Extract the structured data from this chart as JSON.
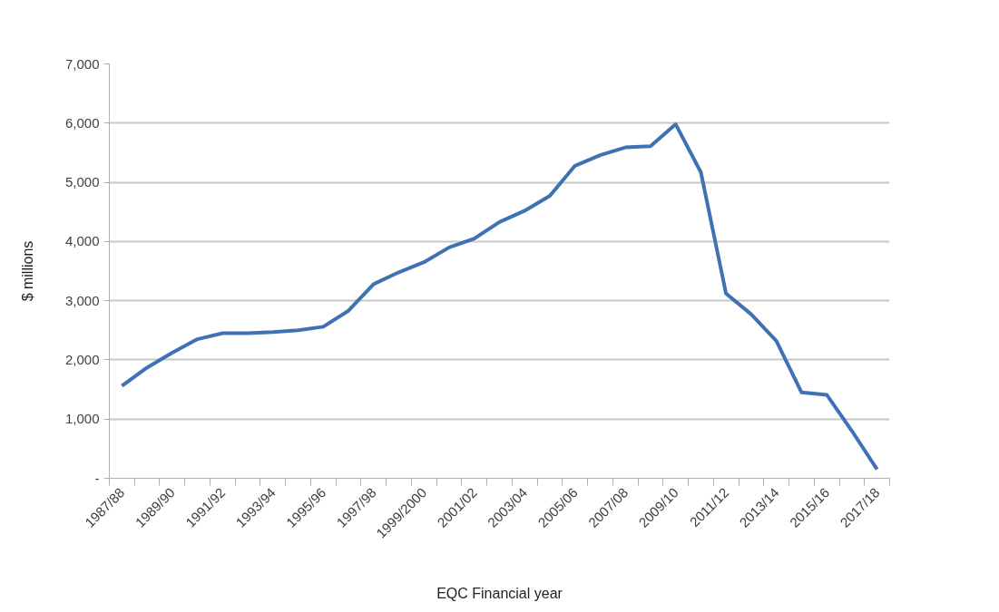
{
  "chart_data": {
    "type": "line",
    "xlabel": "EQC Financial year",
    "ylabel": "$ millions",
    "categories": [
      "1987/88",
      null,
      "1989/90",
      null,
      "1991/92",
      null,
      "1993/94",
      null,
      "1995/96",
      null,
      "1997/98",
      null,
      "1999/2000",
      null,
      "2001/02",
      null,
      "2003/04",
      null,
      "2005/06",
      null,
      "2007/08",
      null,
      "2009/10",
      null,
      "2011/12",
      null,
      "2013/14",
      null,
      "2015/16",
      null,
      "2017/18"
    ],
    "series": [
      {
        "color": "#3f72b4",
        "values": [
          1560,
          1870,
          2120,
          2350,
          2450,
          2450,
          2470,
          2500,
          2560,
          2830,
          3280,
          3480,
          3650,
          3900,
          4050,
          4330,
          4520,
          4770,
          5280,
          5460,
          5590,
          5610,
          5980,
          5170,
          3120,
          2770,
          2320,
          1450,
          1410,
          800,
          150
        ]
      }
    ],
    "ylim": [
      0,
      7000
    ],
    "yticks": [
      {
        "value": 0,
        "label": "-"
      },
      {
        "value": 1000,
        "label": "1,000"
      },
      {
        "value": 2000,
        "label": "2,000"
      },
      {
        "value": 3000,
        "label": "3,000"
      },
      {
        "value": 4000,
        "label": "4,000"
      },
      {
        "value": 5000,
        "label": "5,000"
      },
      {
        "value": 6000,
        "label": "6,000"
      },
      {
        "value": 7000,
        "label": "7,000"
      }
    ],
    "grid": "y",
    "marker": "none",
    "line_style": "solid"
  }
}
